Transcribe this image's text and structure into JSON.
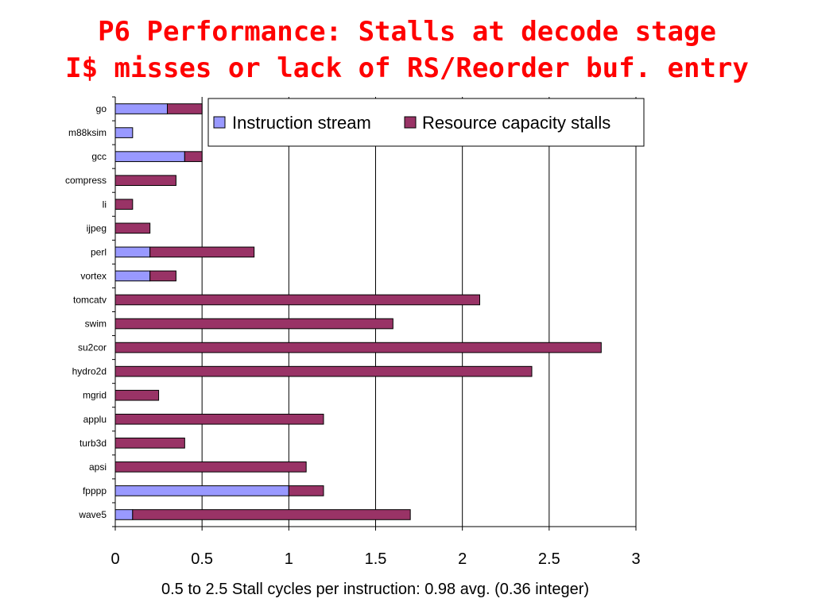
{
  "slide": {
    "title_line1": "P6 Performance: Stalls at decode stage",
    "title_line2": "I$ misses or lack of RS/Reorder buf. entry"
  },
  "colors": {
    "instruction_stream": "#9999ff",
    "resource_capacity": "#993366",
    "title": "#ff0000"
  },
  "chart_data": {
    "type": "bar",
    "orientation": "horizontal",
    "stacked": true,
    "categories": [
      "go",
      "m88ksim",
      "gcc",
      "compress",
      "li",
      "ijpeg",
      "perl",
      "vortex",
      "tomcatv",
      "swim",
      "su2cor",
      "hydro2d",
      "mgrid",
      "applu",
      "turb3d",
      "apsi",
      "fpppp",
      "wave5"
    ],
    "series": [
      {
        "name": "Instruction stream",
        "values": [
          0.3,
          0.1,
          0.4,
          0,
          0,
          0,
          0.2,
          0.2,
          0,
          0,
          0,
          0,
          0,
          0,
          0,
          0,
          1.0,
          0.1
        ]
      },
      {
        "name": "Resource capacity stalls",
        "values": [
          0.2,
          0,
          0.1,
          0.35,
          0.1,
          0.2,
          0.6,
          0.15,
          2.1,
          1.6,
          2.8,
          2.4,
          0.25,
          1.2,
          0.4,
          1.1,
          0.2,
          1.6
        ]
      }
    ],
    "xlim": [
      0,
      3
    ],
    "xticks": [
      "0",
      "0.5",
      "1",
      "1.5",
      "2",
      "2.5",
      "3"
    ],
    "xlabel": "0.5 to 2.5 Stall cycles per instruction: 0.98 avg. (0.36 integer)",
    "grid": "vertical major gridlines",
    "legend_position": "top-right"
  }
}
